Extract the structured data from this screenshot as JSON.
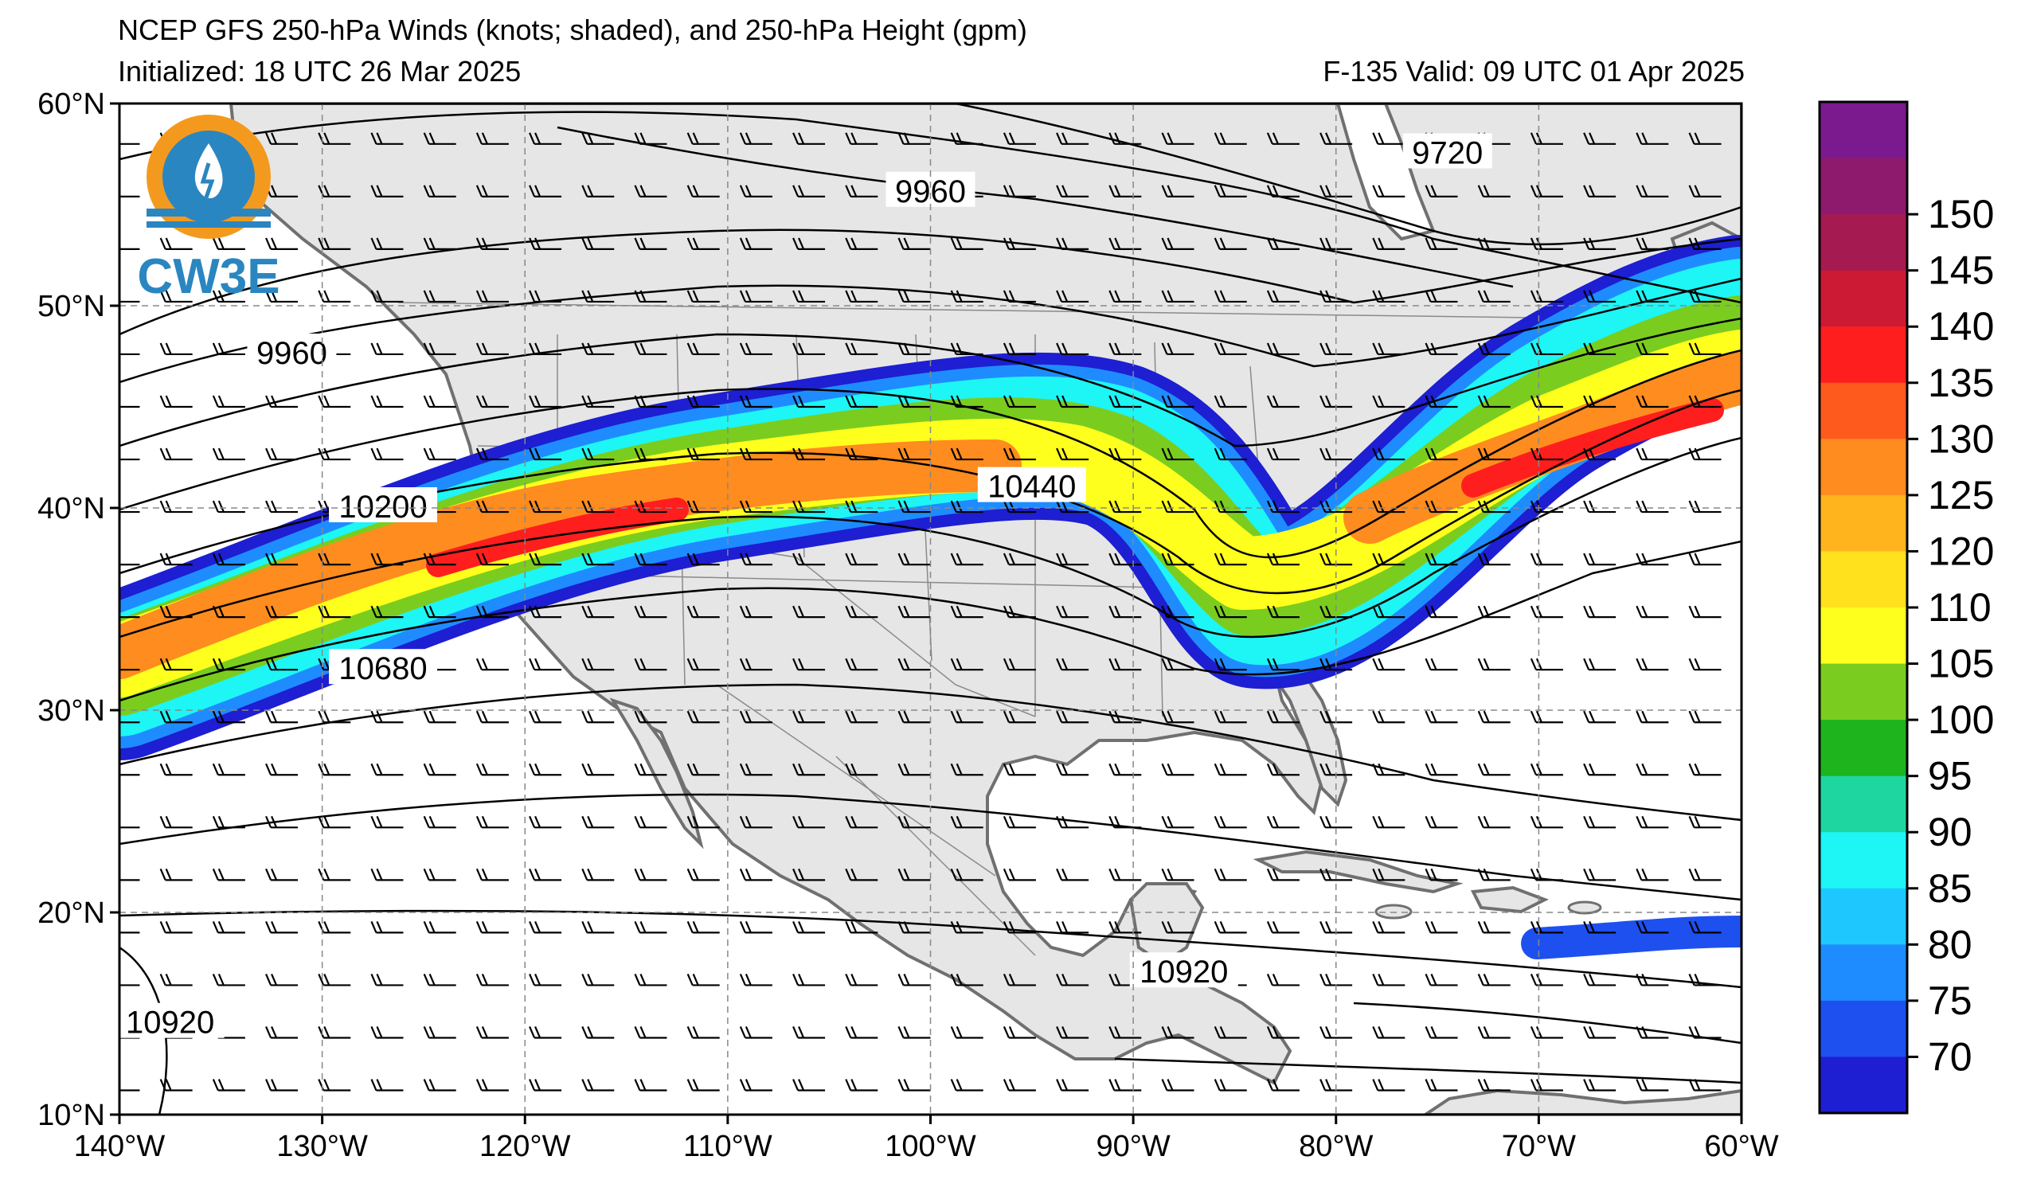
{
  "header": {
    "title": "NCEP GFS 250-hPa Winds (knots; shaded), and 250-hPa Height (gpm)",
    "initialized": "Initialized: 18 UTC 26 Mar 2025",
    "valid": "F-135  Valid: 09 UTC 01 Apr 2025"
  },
  "logo": {
    "text": "CW3E",
    "icon": "cw3e-logo-icon"
  },
  "map": {
    "lon_range": [
      -140,
      -60
    ],
    "lat_range": [
      10,
      60
    ],
    "lon_ticks": [
      {
        "value": -140,
        "label": "140°W"
      },
      {
        "value": -130,
        "label": "130°W"
      },
      {
        "value": -120,
        "label": "120°W"
      },
      {
        "value": -110,
        "label": "110°W"
      },
      {
        "value": -100,
        "label": "100°W"
      },
      {
        "value": -90,
        "label": "90°W"
      },
      {
        "value": -80,
        "label": "80°W"
      },
      {
        "value": -70,
        "label": "70°W"
      },
      {
        "value": -60,
        "label": "60°W"
      }
    ],
    "lat_ticks": [
      {
        "value": 60,
        "label": "60°N"
      },
      {
        "value": 50,
        "label": "50°N"
      },
      {
        "value": 40,
        "label": "40°N"
      },
      {
        "value": 30,
        "label": "30°N"
      },
      {
        "value": 20,
        "label": "20°N"
      },
      {
        "value": 10,
        "label": "10°N"
      }
    ],
    "grid": true,
    "contour_labels": [
      {
        "text": "9960",
        "lon": -100,
        "lat": 55.6
      },
      {
        "text": "9720",
        "lon": -74.5,
        "lat": 57.5
      },
      {
        "text": "9960",
        "lon": -131.5,
        "lat": 47.6
      },
      {
        "text": "10200",
        "lon": -127,
        "lat": 40.0
      },
      {
        "text": "10440",
        "lon": -95,
        "lat": 41.0
      },
      {
        "text": "10680",
        "lon": -127,
        "lat": 32.0
      },
      {
        "text": "10920",
        "lon": -87.5,
        "lat": 17.0
      },
      {
        "text": "10920",
        "lon": -137.5,
        "lat": 14.5
      }
    ]
  },
  "colorbar": {
    "ticks": [
      "150",
      "145",
      "140",
      "135",
      "130",
      "125",
      "120",
      "110",
      "105",
      "100",
      "95",
      "90",
      "85",
      "80",
      "75",
      "70"
    ],
    "colors": [
      "#7b1a8e",
      "#8e1a6e",
      "#a51a50",
      "#cc1a35",
      "#ff1e1e",
      "#ff5a1e",
      "#ff8c1e",
      "#ffb41e",
      "#ffe11e",
      "#ffff1e",
      "#7acd1e",
      "#1eb41e",
      "#1ed7a0",
      "#1ef5f5",
      "#1ec8ff",
      "#1e8cff",
      "#1e50f0",
      "#1e1ed2"
    ]
  },
  "colors": {
    "land": "#e6e6e6",
    "coast": "#707070",
    "ocean": "#ffffff"
  }
}
